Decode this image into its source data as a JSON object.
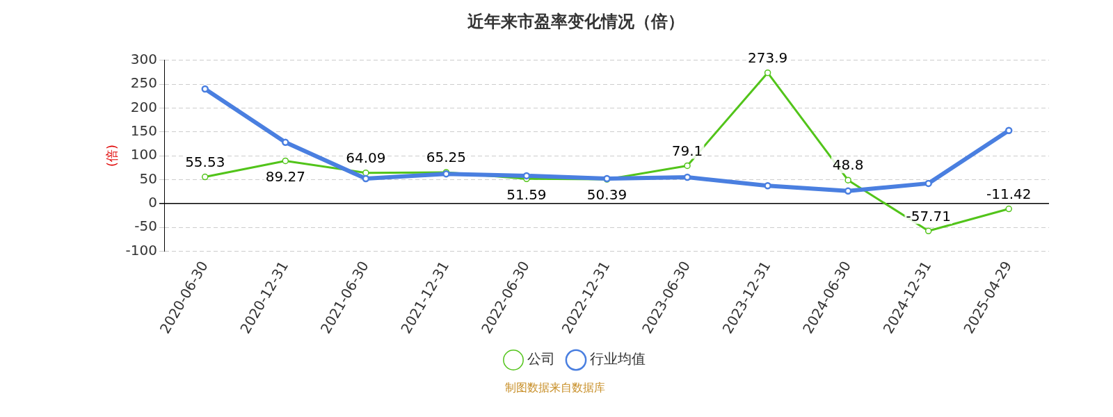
{
  "chart_data": {
    "type": "line",
    "title": "近年来市盈率变化情况（倍）",
    "ylabel": "(倍)",
    "categories": [
      "2020-06-30",
      "2020-12-31",
      "2021-06-30",
      "2021-12-31",
      "2022-06-30",
      "2022-12-31",
      "2023-06-30",
      "2023-12-31",
      "2024-06-30",
      "2024-12-31",
      "2025-04-29"
    ],
    "series": [
      {
        "name": "公司",
        "color": "#52c41a",
        "values": [
          55.53,
          89.27,
          64.09,
          65.25,
          51.59,
          50.39,
          79.1,
          273.9,
          48.8,
          -57.71,
          -11.42
        ],
        "value_labels": [
          "55.53",
          "89.27",
          "64.09",
          "65.25",
          "51.59",
          "50.39",
          "79.1",
          "273.9",
          "48.8",
          "-57.71",
          "-11.42"
        ]
      },
      {
        "name": "行业均值",
        "color": "#4a7fe0",
        "values": [
          240,
          128,
          52,
          62,
          58,
          52,
          55,
          37,
          26,
          42,
          153
        ]
      }
    ],
    "ylim": [
      -100,
      300
    ],
    "yticks": [
      -100,
      -50,
      0,
      50,
      100,
      150,
      200,
      250,
      300
    ],
    "grid": "y",
    "legend": "bottom",
    "marker": "circle",
    "line_style": "solid",
    "annotations": [
      "制图数据来自数据库"
    ]
  }
}
